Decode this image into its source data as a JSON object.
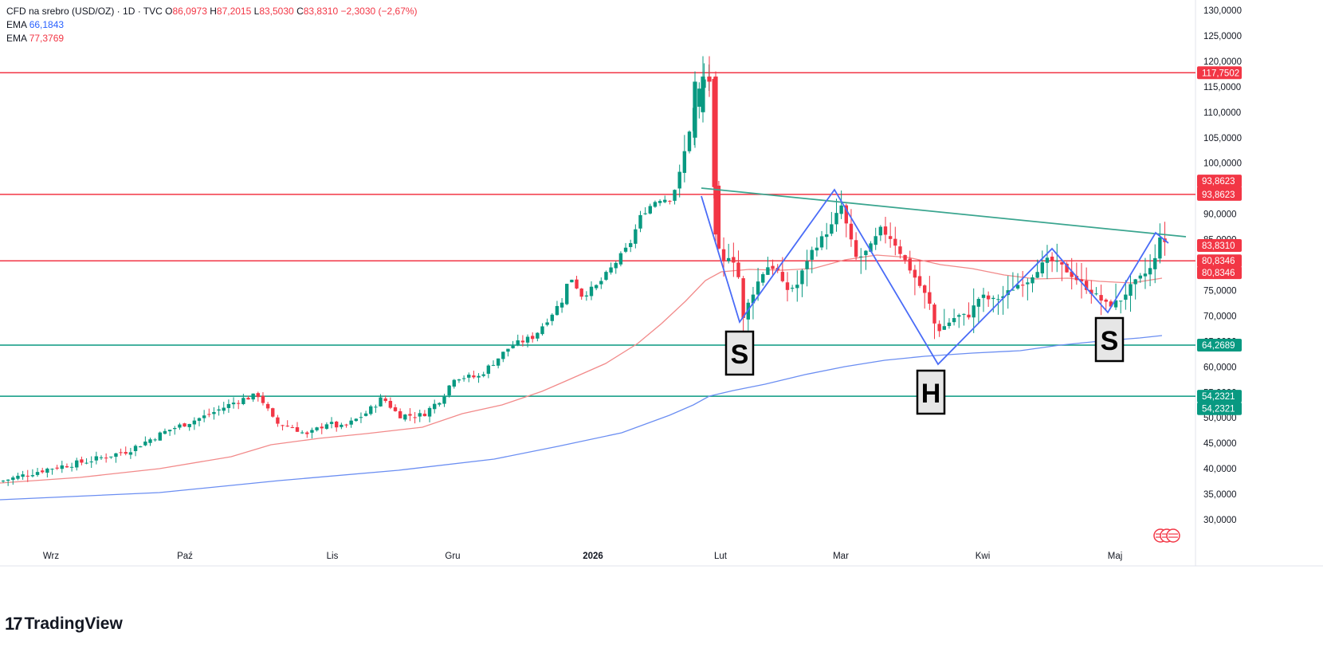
{
  "legend": {
    "symbol": "CFD na srebro (USD/OZ) · 1D · TVC",
    "o_label": "O",
    "o_value": "86,0973",
    "h_label": "H",
    "h_value": "87,2015",
    "l_label": "L",
    "l_value": "83,5030",
    "c_label": "C",
    "c_value": "83,8310",
    "change": "−2,3030 (−2,67%)",
    "ema1_label": "EMA",
    "ema1_value": "66,1843",
    "ema2_label": "EMA",
    "ema2_value": "77,3769"
  },
  "brand": {
    "name": "TradingView",
    "mark": "17"
  },
  "colors": {
    "up": "#089981",
    "down": "#f23645",
    "ema_blue": "#6b8ef2",
    "ema_pink": "#f28a8a",
    "pattern": "#4a6cf7",
    "trend": "#3aa58f"
  },
  "chart_data": {
    "type": "candlestick",
    "x_ticks": [
      "Wrz",
      "Paź",
      "Lis",
      "Gru",
      "2026",
      "Lut",
      "Mar",
      "Kwi",
      "Maj"
    ],
    "y_ticks": [
      "130,0000",
      "125,0000",
      "120,0000",
      "115,0000",
      "110,0000",
      "105,0000",
      "100,0000",
      "95,0000",
      "90,0000",
      "85,0000",
      "80,0000",
      "75,0000",
      "70,0000",
      "65,0000",
      "60,0000",
      "55,0000",
      "50,0000",
      "45,0000",
      "40,0000",
      "35,0000",
      "30,0000"
    ],
    "ylim": [
      26,
      131
    ],
    "series": [
      {
        "name": "EMA",
        "value_last": "66,1843"
      },
      {
        "name": "EMA",
        "value_last": "77,3769"
      }
    ],
    "price_badges": [
      {
        "text": "117,7502",
        "value": 117.75,
        "color": "#f23645"
      },
      {
        "text": "93,8623",
        "value": 96.5,
        "color": "#f23645"
      },
      {
        "text": "93,8623",
        "value": 94.2,
        "color": "#f23645"
      },
      {
        "text": "93,8623",
        "value": 93.86,
        "color": "#f23645"
      },
      {
        "text": "83,8310",
        "value": 83.83,
        "color": "#f23645"
      },
      {
        "text": "80,8346",
        "value": 80.83,
        "color": "#f23645"
      },
      {
        "text": "80,8346",
        "value": 78.5,
        "color": "#f23645"
      },
      {
        "text": "64,2689",
        "value": 64.27,
        "color": "#089981"
      },
      {
        "text": "54,2321",
        "value": 54.23,
        "color": "#089981"
      },
      {
        "text": "54,2321",
        "value": 51.8,
        "color": "#089981"
      }
    ],
    "horizontal_levels": [
      {
        "value": 117.75,
        "color": "#f23645"
      },
      {
        "value": 93.86,
        "color": "#f23645"
      },
      {
        "value": 80.83,
        "color": "#f23645"
      },
      {
        "value": 64.27,
        "color": "#089981"
      },
      {
        "value": 54.23,
        "color": "#089981"
      }
    ],
    "pattern_labels": [
      "S",
      "H",
      "S"
    ]
  }
}
